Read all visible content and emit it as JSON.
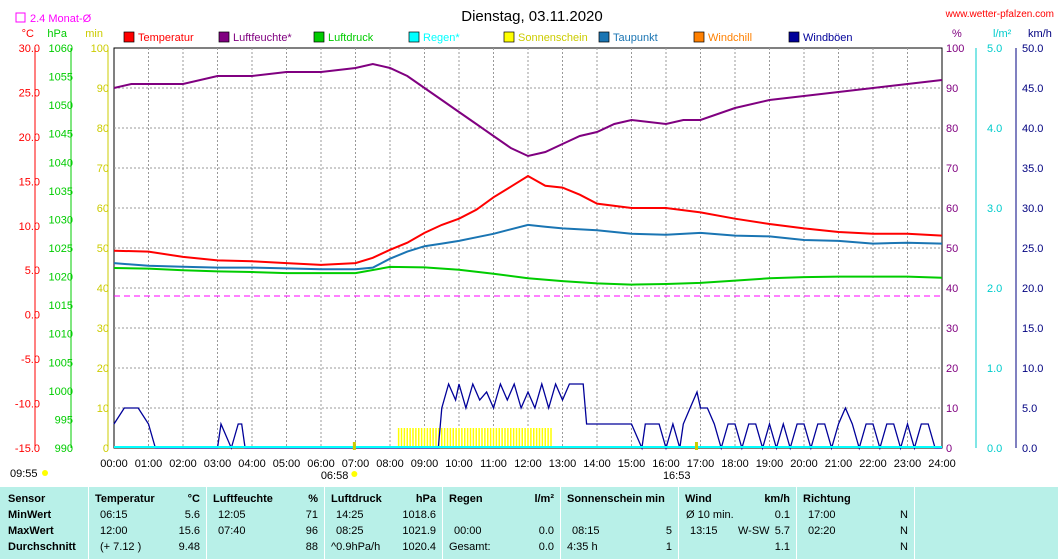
{
  "header": {
    "title": "Dienstag, 03.11.2020",
    "site": "www.wetter-pfalzen.com",
    "monthly_avg_label": "2.4 Monat-Ø"
  },
  "chart_data": {
    "type": "line",
    "title": "Dienstag, 03.11.2020",
    "x_ticks": [
      "00:00",
      "01:00",
      "02:00",
      "03:00",
      "04:00",
      "05:00",
      "06:00",
      "07:00",
      "08:00",
      "09:00",
      "10:00",
      "11:00",
      "12:00",
      "13:00",
      "14:00",
      "15:00",
      "16:00",
      "17:00",
      "18:00",
      "19:00",
      "20:00",
      "21:00",
      "22:00",
      "23:00",
      "24:00"
    ],
    "sunrise": "06:58",
    "sunset": "16:53",
    "sun_hours": [
      "09:55"
    ],
    "xlim": [
      0,
      24
    ],
    "grid": true,
    "legend_position": "top",
    "axes": [
      {
        "unit": "°C",
        "color": "#ff0000",
        "lim": [
          -15,
          30
        ],
        "ticks": [
          "30.0",
          "25.0",
          "20.0",
          "15.0",
          "10.0",
          "5.0",
          "0.0",
          "-5.0",
          "-10.0",
          "-15.0"
        ]
      },
      {
        "unit": "hPa",
        "color": "#00cc00",
        "lim": [
          990,
          1060
        ],
        "ticks": [
          "1060",
          "1055",
          "1050",
          "1045",
          "1040",
          "1035",
          "1030",
          "1025",
          "1020",
          "1015",
          "1010",
          "1005",
          "1000",
          "995",
          "990"
        ]
      },
      {
        "unit": "min",
        "color": "#cccc00",
        "lim": [
          0,
          100
        ],
        "ticks": [
          "100",
          "90",
          "80",
          "70",
          "60",
          "50",
          "40",
          "30",
          "20",
          "10",
          "0"
        ]
      },
      {
        "unit": "%",
        "color": "#800080",
        "lim": [
          0,
          100
        ],
        "ticks": [
          "100",
          "90",
          "80",
          "70",
          "60",
          "50",
          "40",
          "30",
          "20",
          "10",
          "0"
        ]
      },
      {
        "unit": "l/m²",
        "color": "#00cccc",
        "lim": [
          0,
          5
        ],
        "ticks": [
          "5.0",
          "4.0",
          "3.0",
          "2.0",
          "1.0",
          "0.0"
        ]
      },
      {
        "unit": "km/h",
        "color": "#000080",
        "lim": [
          0,
          50
        ],
        "ticks": [
          "50.0",
          "45.0",
          "40.0",
          "35.0",
          "30.0",
          "25.0",
          "20.0",
          "15.0",
          "10.0",
          "5.0",
          "0.0"
        ]
      }
    ],
    "legend": [
      {
        "name": "Temperatur",
        "color": "#ff0000"
      },
      {
        "name": "Luftfeuchte*",
        "color": "#800080"
      },
      {
        "name": "Luftdruck",
        "color": "#00cc00"
      },
      {
        "name": "Regen*",
        "color": "#00ffff"
      },
      {
        "name": "Sonnenschein",
        "color": "#ffff00"
      },
      {
        "name": "Taupunkt",
        "color": "#1a75b3"
      },
      {
        "name": "Windchill",
        "color": "#ff8000"
      },
      {
        "name": "Windböen",
        "color": "#000099"
      }
    ],
    "series": [
      {
        "name": "Temperatur",
        "axis": 0,
        "color": "#ff0000",
        "x": [
          0,
          1,
          2,
          3,
          4,
          5,
          6,
          6.5,
          7,
          7.5,
          8,
          8.5,
          9,
          9.5,
          10,
          10.5,
          11,
          11.5,
          12,
          12.5,
          13,
          13.5,
          14,
          15,
          16,
          17,
          18,
          19,
          20,
          21,
          22,
          23,
          24
        ],
        "y": [
          7.2,
          7.1,
          6.5,
          6.1,
          6.0,
          5.8,
          5.6,
          5.7,
          5.8,
          6.4,
          7.3,
          8.1,
          9.2,
          10.1,
          10.8,
          11.8,
          13.2,
          14.4,
          15.6,
          14.5,
          14.3,
          13.5,
          12.5,
          12.0,
          12.0,
          11.5,
          10.8,
          10.2,
          9.7,
          9.3,
          9.1,
          9.1,
          8.9
        ]
      },
      {
        "name": "Luftfeuchte*",
        "axis": 3,
        "color": "#800080",
        "x": [
          0,
          0.5,
          1,
          2,
          3,
          4,
          5,
          6,
          7,
          7.5,
          8,
          8.5,
          9,
          9.5,
          10,
          10.5,
          11,
          11.5,
          12,
          12.5,
          13,
          13.5,
          14,
          14.5,
          15,
          16,
          16.5,
          17,
          18,
          19,
          20,
          21,
          22,
          23,
          24
        ],
        "y": [
          90,
          91,
          91,
          91,
          93,
          93,
          94,
          94,
          95,
          96,
          95,
          93,
          90,
          87,
          84,
          81,
          78,
          75,
          73,
          74,
          76,
          78,
          79,
          81,
          82,
          81,
          82,
          82,
          85,
          87,
          88,
          89,
          90,
          91,
          92
        ]
      },
      {
        "name": "Luftdruck",
        "axis": 1,
        "color": "#00cc00",
        "x": [
          0,
          1,
          2,
          3,
          4,
          5,
          6,
          7,
          8,
          9,
          10,
          11,
          12,
          13,
          14,
          15,
          16,
          17,
          18,
          19,
          20,
          21,
          22,
          23,
          24
        ],
        "y": [
          1021.5,
          1021.4,
          1021.1,
          1020.9,
          1020.8,
          1020.6,
          1020.6,
          1020.6,
          1021.7,
          1021.6,
          1021.2,
          1020.5,
          1019.7,
          1019.2,
          1018.8,
          1018.6,
          1018.7,
          1018.9,
          1019.3,
          1019.7,
          1019.9,
          1020.0,
          1020.0,
          1020.0,
          1019.8
        ]
      },
      {
        "name": "Taupunkt",
        "axis": 0,
        "color": "#1a75b3",
        "x": [
          0,
          1,
          2,
          3,
          4,
          5,
          6,
          6.5,
          7,
          7.5,
          8,
          8.5,
          9,
          9.5,
          10,
          10.5,
          11,
          11.5,
          12,
          12.5,
          13,
          14,
          15,
          16,
          17,
          18,
          19,
          20,
          21,
          22,
          23,
          24
        ],
        "y": [
          5.8,
          5.5,
          5.4,
          5.3,
          5.3,
          5.2,
          5.1,
          5.1,
          5.1,
          5.3,
          6.3,
          7.1,
          7.7,
          8.0,
          8.3,
          8.7,
          9.1,
          9.6,
          10.1,
          9.9,
          9.7,
          9.5,
          9.1,
          9.0,
          9.2,
          8.9,
          8.8,
          8.4,
          8.3,
          8.0,
          8.1,
          8.0
        ]
      },
      {
        "name": "Windböen",
        "axis": 5,
        "color": "#000099",
        "x": [
          0,
          0.3,
          0.7,
          1.0,
          1.2,
          1.3,
          3.0,
          3.1,
          3.4,
          3.6,
          3.7,
          3.8,
          9.4,
          9.5,
          9.7,
          9.9,
          10.0,
          10.2,
          10.4,
          10.6,
          10.8,
          11.0,
          11.2,
          11.4,
          11.6,
          11.8,
          12.0,
          12.2,
          12.4,
          12.6,
          12.8,
          13.0,
          13.2,
          13.4,
          13.6,
          13.7,
          14.5,
          15.0,
          15.3,
          15.4,
          15.8,
          16.0,
          16.2,
          16.4,
          16.5,
          16.7,
          16.9,
          17.0,
          17.2,
          17.4,
          17.6,
          17.8,
          18.0,
          18.2,
          18.4,
          18.6,
          18.8,
          19.0,
          19.2,
          19.4,
          19.6,
          19.8,
          20.0,
          20.2,
          20.4,
          20.6,
          20.8,
          21.0,
          21.2,
          21.4,
          21.6,
          21.8,
          22.0,
          22.2,
          22.4,
          22.6,
          22.8,
          23.0,
          23.2,
          23.4,
          23.6,
          23.8,
          24.0
        ],
        "y": [
          3,
          5,
          5,
          3,
          0,
          0,
          0,
          3,
          0,
          3,
          3,
          0,
          0,
          5,
          8,
          6,
          8,
          5,
          8,
          6,
          7,
          5,
          8,
          6,
          8,
          5,
          7,
          5,
          8,
          5,
          8,
          6,
          8,
          8,
          8,
          3,
          3,
          3,
          0,
          3,
          3,
          0,
          3,
          0,
          3,
          5,
          7,
          5,
          5,
          3,
          0,
          3,
          3,
          0,
          3,
          3,
          0,
          3,
          0,
          3,
          0,
          3,
          3,
          0,
          3,
          3,
          0,
          3,
          5,
          3,
          0,
          3,
          3,
          0,
          3,
          3,
          0,
          3,
          0,
          3,
          3,
          0,
          0
        ]
      },
      {
        "name": "Sonnenschein",
        "axis": 2,
        "color": "#ffff00",
        "x": [
          8.25,
          8.5,
          9,
          9.5,
          10,
          10.5,
          11,
          11.5,
          12,
          12.5,
          12.75
        ],
        "y": [
          5,
          5,
          5,
          5,
          5,
          5,
          5,
          5,
          5,
          5,
          5
        ]
      }
    ],
    "reference_lines": [
      {
        "name": "2.4 Monat-Ø",
        "axis": 4,
        "value": 1.9,
        "color": "#ff00ff",
        "style": "dashed"
      }
    ]
  },
  "stats": {
    "headers": {
      "sensor": "Sensor",
      "temp": "Temperatur",
      "temp_unit": "°C",
      "hum": "Luftfeuchte",
      "hum_unit": "%",
      "press": "Luftdruck",
      "press_unit": "hPa",
      "rain": "Regen",
      "rain_unit": "l/m²",
      "sun": "Sonnenschein min",
      "wind": "Wind",
      "wind_unit": "km/h",
      "dir": "Richtung"
    },
    "rows": [
      {
        "label": "MinWert",
        "temp_time": "06:15",
        "temp_val": "5.6",
        "hum_time": "12:05",
        "hum_val": "71",
        "press_time": "14:25",
        "press_val": "1018.6",
        "rain_time": "",
        "rain_val": "",
        "sun_time": "",
        "sun_val": "",
        "wind_time": "Ø 10 min.",
        "wind_dir": "",
        "wind_val": "0.1",
        "dir_time": "17:00",
        "dir_val": "N"
      },
      {
        "label": "MaxWert",
        "temp_time": "12:00",
        "temp_val": "15.6",
        "hum_time": "07:40",
        "hum_val": "96",
        "press_time": "08:25",
        "press_val": "1021.9",
        "rain_time": "00:00",
        "rain_val": "0.0",
        "sun_time": "08:15",
        "sun_val": "5",
        "wind_time": "13:15",
        "wind_dir": "W-SW",
        "wind_val": "5.7",
        "dir_time": "02:20",
        "dir_val": "N"
      },
      {
        "label": "Durchschnitt",
        "temp_time": "(+ 7.12 )",
        "temp_val": "9.48",
        "hum_time": "",
        "hum_val": "88",
        "press_time": "^0.9hPa/h",
        "press_val": "1020.4",
        "rain_time": "Gesamt:",
        "rain_val": "0.0",
        "sun_time": "4:35 h",
        "sun_val": "1",
        "wind_time": "",
        "wind_dir": "",
        "wind_val": "1.1",
        "dir_time": "",
        "dir_val": "N"
      }
    ]
  }
}
